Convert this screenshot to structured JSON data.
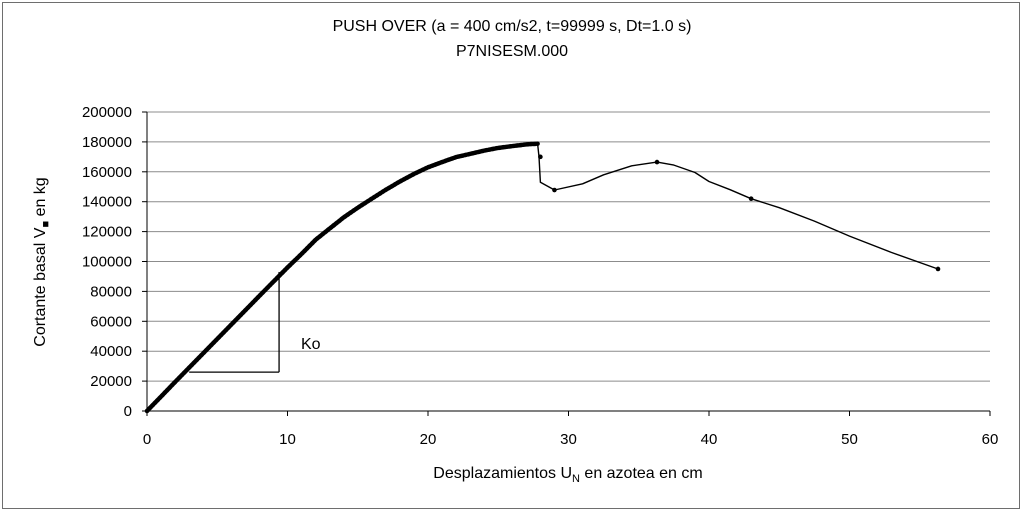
{
  "chart_data": {
    "type": "line",
    "title": "PUSH OVER (a = 400 cm/s2, t=99999 s, Dt=1.0 s)",
    "subtitle": "P7NISESM.000",
    "xlabel": {
      "main": "Desplazamientos U",
      "sub": "N",
      "rest": " en azotea en cm"
    },
    "ylabel": {
      "main": "Cortante basal V",
      "sub": "",
      "rest": " en kg"
    },
    "xlim": [
      0,
      60
    ],
    "ylim": [
      0,
      200000
    ],
    "xticks": [
      "0",
      "10",
      "20",
      "30",
      "40",
      "50",
      "60"
    ],
    "yticks": [
      "0",
      "20000",
      "40000",
      "60000",
      "80000",
      "100000",
      "120000",
      "140000",
      "160000",
      "180000",
      "200000"
    ],
    "grid": "horizontal",
    "legend": "none",
    "annotation": "Ko",
    "ko_triangle": {
      "x0": 3.0,
      "x1": 9.4,
      "y0": 26000,
      "y1": 93000
    },
    "series": [
      {
        "color": "#000000",
        "points": [
          [
            0,
            0
          ],
          [
            1,
            9700
          ],
          [
            2,
            19400
          ],
          [
            3,
            29000
          ],
          [
            4,
            38600
          ],
          [
            5,
            48200
          ],
          [
            6,
            57800
          ],
          [
            7,
            67400
          ],
          [
            8,
            77000
          ],
          [
            9,
            86500
          ],
          [
            10,
            96000
          ],
          [
            11,
            105000
          ],
          [
            12,
            114500
          ],
          [
            13,
            122000
          ],
          [
            14,
            129500
          ],
          [
            15,
            136000
          ],
          [
            16,
            142000
          ],
          [
            17,
            148000
          ],
          [
            18,
            153500
          ],
          [
            19,
            158500
          ],
          [
            20,
            163000
          ],
          [
            21,
            166500
          ],
          [
            22,
            169800
          ],
          [
            23,
            172000
          ],
          [
            24,
            174200
          ],
          [
            25,
            176000
          ],
          [
            26,
            177200
          ],
          [
            27,
            178300
          ],
          [
            27.8,
            178800
          ],
          [
            27.9,
            170000
          ],
          [
            28.0,
            153000
          ],
          [
            29.0,
            147800
          ],
          [
            31.0,
            152000
          ],
          [
            32.5,
            158000
          ],
          [
            34.5,
            164000
          ],
          [
            36.3,
            166500
          ],
          [
            37.5,
            164500
          ],
          [
            39.0,
            159500
          ],
          [
            40.0,
            153500
          ],
          [
            41.5,
            148000
          ],
          [
            43.0,
            142000
          ],
          [
            45.0,
            136000
          ],
          [
            47.5,
            127000
          ],
          [
            50.0,
            117000
          ],
          [
            53.0,
            106000
          ],
          [
            56.3,
            95000
          ]
        ],
        "markers": [
          [
            28.0,
            170000
          ],
          [
            29.0,
            147800
          ],
          [
            36.3,
            166500
          ],
          [
            43.0,
            142000
          ],
          [
            56.3,
            95000
          ]
        ],
        "dense_to_x": 27.8
      }
    ]
  }
}
